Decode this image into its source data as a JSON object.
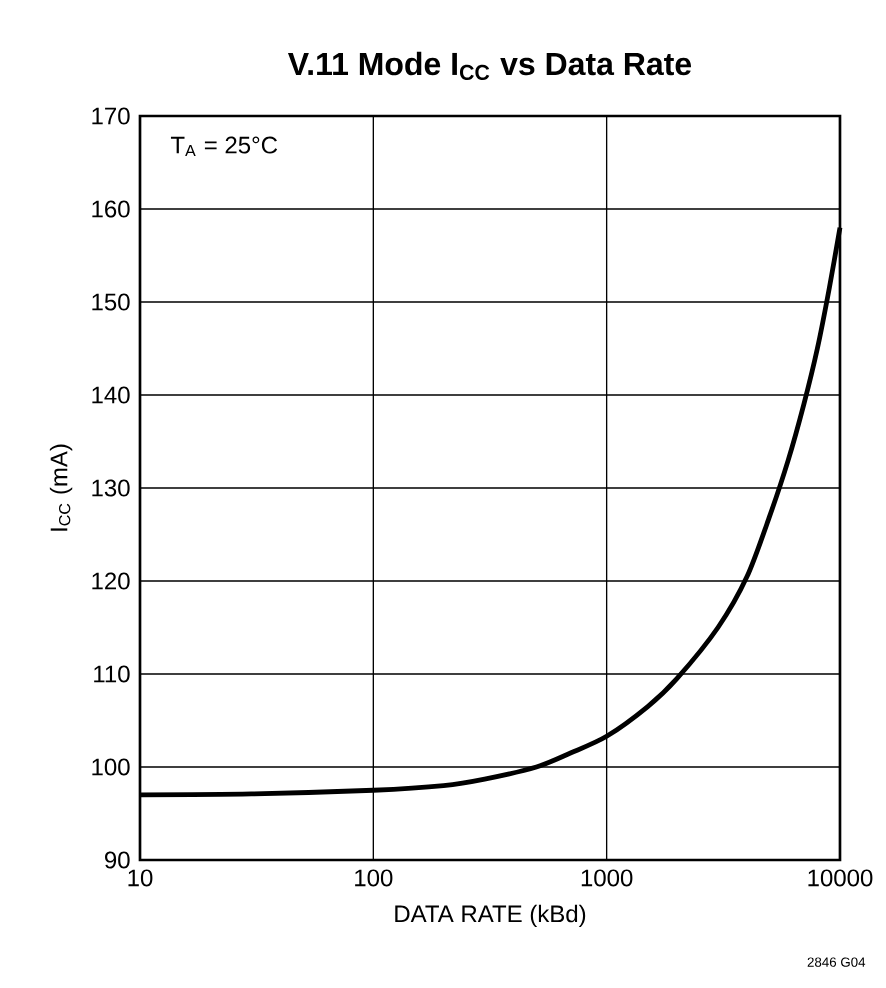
{
  "chart_data": {
    "type": "line",
    "title": "V.11 Mode I$_{CC}$ vs Data Rate",
    "xlabel": "DATA RATE (kBd)",
    "ylabel": "I$_{CC}$ (mA)",
    "annotations": [
      "T$_{A}$ = 25°C",
      "2846 G04"
    ],
    "log": "x",
    "grid": true,
    "xlim": [
      10,
      10000
    ],
    "ylim": [
      90,
      170
    ],
    "xticks": [
      10,
      100,
      1000,
      10000
    ],
    "yticks": [
      90,
      100,
      110,
      120,
      130,
      140,
      150,
      160,
      170
    ],
    "x": [
      10,
      30,
      100,
      200,
      300,
      500,
      700,
      1000,
      1500,
      2000,
      3000,
      4000,
      5000,
      6000,
      7000,
      8000,
      9000,
      10000
    ],
    "series": [
      {
        "color": "#000000",
        "values": [
          97,
          97.1,
          97.5,
          98,
          98.7,
          100,
          101.5,
          103.3,
          106.5,
          109.5,
          115,
          120.5,
          127,
          133,
          139,
          145,
          151.5,
          158
        ]
      }
    ]
  }
}
